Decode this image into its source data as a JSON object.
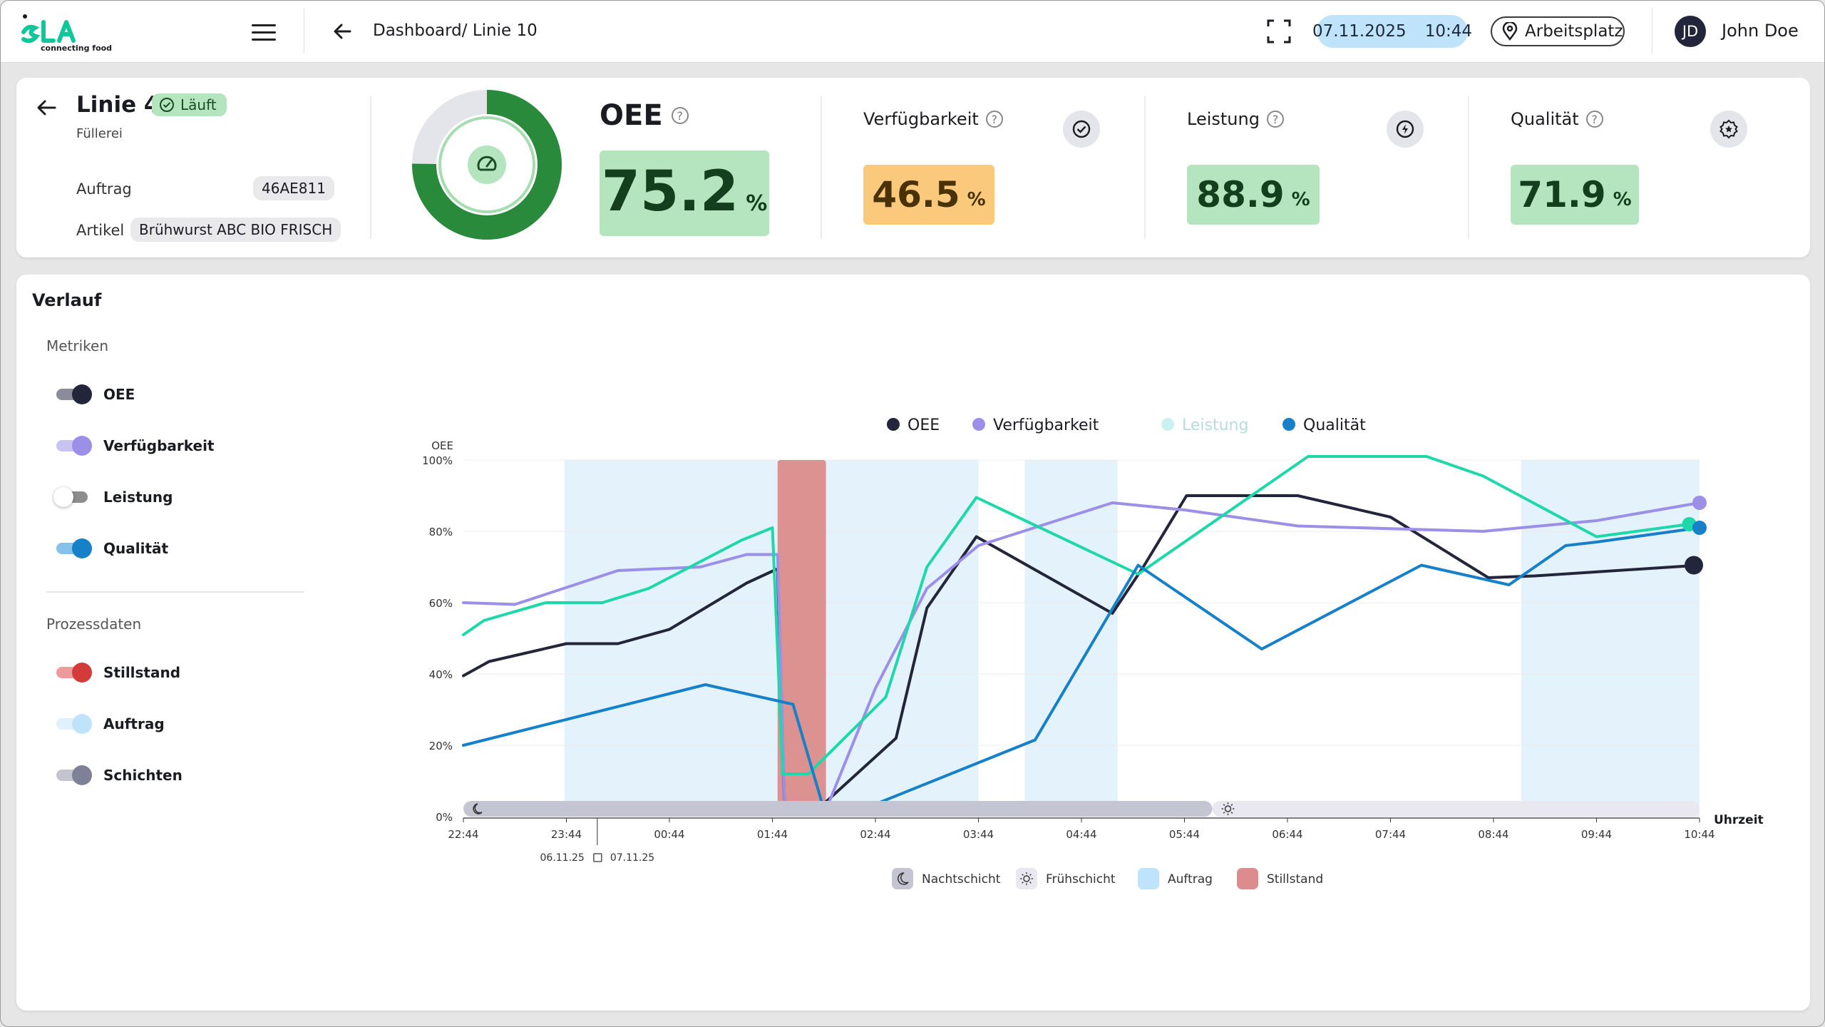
{
  "header": {
    "logo_text": "SLA",
    "logo_tagline": "connecting food",
    "breadcrumb": "Dashboard/ Linie 10",
    "date": "07.11.2025",
    "time": "10:44",
    "location": "Arbeitsplatz",
    "user_initials": "JD",
    "user_name": "John Doe"
  },
  "line": {
    "name": "Linie 4",
    "status": "Läuft",
    "sublabel": "Füllerei",
    "order_label": "Auftrag",
    "order_value": "46AE811",
    "article_label": "Artikel",
    "article_value": "Brühwurst ABC BIO FRISCH"
  },
  "oee": {
    "title": "OEE",
    "value": "75.2",
    "unit": "%",
    "gauge_fraction": 0.752
  },
  "metrics": [
    {
      "title": "Verfügbarkeit",
      "value": "46.5",
      "unit": "%",
      "color": "#fbc97b",
      "text_color": "#4a3208",
      "icon": "check-circle-icon"
    },
    {
      "title": "Leistung",
      "value": "88.9",
      "unit": "%",
      "color": "#b4e5bf",
      "text_color": "#143f1f",
      "icon": "lightning-icon"
    },
    {
      "title": "Qualität",
      "value": "71.9",
      "unit": "%",
      "color": "#b4e5bf",
      "text_color": "#143f1f",
      "icon": "star-badge-icon"
    }
  ],
  "history": {
    "title": "Verlauf",
    "metrics_label": "Metriken",
    "process_label": "Prozessdaten",
    "metric_toggles": [
      {
        "label": "OEE",
        "on": true,
        "color": "#23263a",
        "track": "#8a8c99"
      },
      {
        "label": "Verfügbarkeit",
        "on": true,
        "color": "#9b8fe8",
        "track": "#c9c3f4"
      },
      {
        "label": "Leistung",
        "on": false,
        "color": "#ffffff",
        "track": "#8d8d8d"
      },
      {
        "label": "Qualität",
        "on": true,
        "color": "#1680c8",
        "track": "#86c1ea"
      }
    ],
    "process_toggles": [
      {
        "label": "Stillstand",
        "on": true,
        "color": "#d33b3b",
        "track": "#ee9a9a"
      },
      {
        "label": "Auftrag",
        "on": true,
        "color": "#bfe3fb",
        "track": "#e0f1fd"
      },
      {
        "label": "Schichten",
        "on": true,
        "color": "#7f8197",
        "track": "#c3c4cf"
      }
    ]
  },
  "chart_data": {
    "type": "line",
    "ylabel": "OEE",
    "xlabel": "Uhrzeit",
    "ylim": [
      0,
      100
    ],
    "y_ticks": [
      "0%",
      "20%",
      "40%",
      "60%",
      "80%",
      "100%"
    ],
    "x_ticks": [
      "22:44",
      "23:44",
      "00:44",
      "01:44",
      "02:44",
      "03:44",
      "04:44",
      "05:44",
      "06:44",
      "07:44",
      "08:44",
      "09:44",
      "10:44"
    ],
    "date_left": "06.11.25",
    "date_right": "07.11.25",
    "legend": [
      {
        "name": "OEE",
        "color": "#23263a",
        "active": true
      },
      {
        "name": "Verfügbarkeit",
        "color": "#9b8fe8",
        "active": true
      },
      {
        "name": "Leistung",
        "color": "#c9f1ee",
        "active": false
      },
      {
        "name": "Qualität",
        "color": "#1680c8",
        "active": true
      }
    ],
    "series": [
      {
        "name": "OEE",
        "color": "#23263a",
        "x": [
          0,
          0.25,
          1.0,
          1.5,
          2.0,
          2.75,
          3.05,
          3.12,
          3.4,
          4.2,
          4.5,
          4.98,
          6.3,
          6.6,
          7.02,
          8.1,
          9.0,
          9.95,
          10.4,
          12.0
        ],
        "y": [
          39.5,
          43.5,
          48.5,
          48.5,
          52.5,
          65.5,
          69.5,
          1.0,
          1.0,
          22.0,
          58.5,
          78.5,
          57.0,
          70.0,
          90.0,
          90.0,
          84.0,
          67.0,
          67.5,
          70.5
        ]
      },
      {
        "name": "Verfügbarkeit",
        "color": "#9b8fe8",
        "x": [
          0,
          0.5,
          1.5,
          2.3,
          2.75,
          3.05,
          3.12,
          3.5,
          4.0,
          4.5,
          5.0,
          6.3,
          7.0,
          8.1,
          9.9,
          11.0,
          12.0
        ],
        "y": [
          60.0,
          59.5,
          69.0,
          70.0,
          73.5,
          73.5,
          2.0,
          0.5,
          36.0,
          64.0,
          76.0,
          88.0,
          86.0,
          81.5,
          80.0,
          83.0,
          88.0
        ]
      },
      {
        "name": "Leistung",
        "color": "#1ed8a9",
        "x": [
          0,
          0.2,
          0.8,
          1.35,
          1.8,
          2.7,
          3.0,
          3.1,
          3.35,
          4.1,
          4.5,
          4.98,
          6.55,
          8.2,
          9.35,
          9.9,
          11.0,
          11.9
        ],
        "y": [
          51.0,
          55.0,
          60.0,
          60.0,
          64.0,
          77.5,
          81.0,
          12.0,
          12.0,
          33.5,
          70.0,
          89.5,
          68.0,
          101.0,
          101.0,
          95.5,
          78.5,
          82.0
        ]
      },
      {
        "name": "Qualität",
        "color": "#1680c8",
        "x": [
          0,
          2.35,
          3.2,
          3.5,
          4.0,
          5.55,
          6.55,
          7.75,
          9.3,
          10.15,
          10.7,
          11.0,
          12.0
        ],
        "y": [
          20.0,
          37.0,
          31.5,
          2.0,
          3.5,
          21.5,
          70.5,
          47.0,
          70.5,
          65.0,
          76.0,
          77.0,
          81.0
        ]
      }
    ],
    "order_bands": [
      [
        0.98,
        5.0
      ],
      [
        5.45,
        6.35
      ],
      [
        10.27,
        12.0
      ]
    ],
    "stillstand_bands": [
      [
        3.05,
        3.52
      ]
    ],
    "shifts": [
      {
        "name": "Nachtschicht",
        "from": 0,
        "to": 7.27,
        "icon": "moon-icon"
      },
      {
        "name": "Frühschicht",
        "from": 7.27,
        "to": 12.0,
        "icon": "sun-icon"
      }
    ],
    "bottom_legend": [
      "Nachtschicht",
      "Frühschicht",
      "Auftrag",
      "Stillstand"
    ]
  }
}
